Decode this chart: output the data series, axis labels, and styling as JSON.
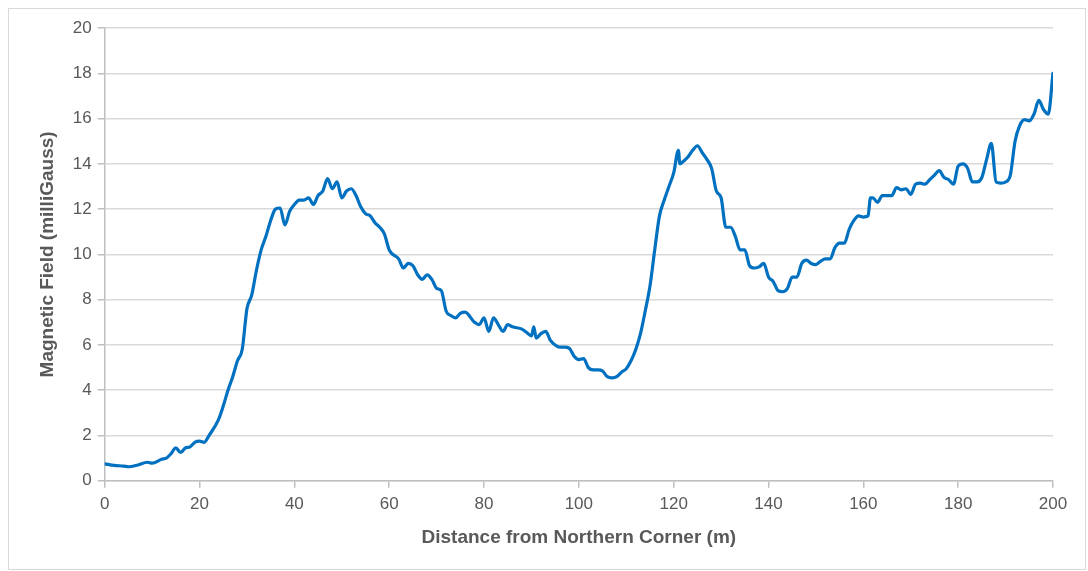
{
  "chart_data": {
    "type": "line",
    "xlabel": "Distance from Northern Corner (m)",
    "ylabel": "Magnetic Field (milliGauss)",
    "x": [
      0,
      2,
      4,
      5,
      7,
      9,
      10,
      12,
      13,
      14,
      15,
      16,
      17,
      18,
      19,
      20,
      21,
      22,
      24,
      25,
      26,
      27,
      28,
      29,
      30,
      31,
      32,
      33,
      34,
      35,
      36,
      37,
      38,
      39,
      40,
      41,
      42,
      43,
      44,
      45,
      46,
      47,
      48,
      49,
      50,
      51,
      52,
      53,
      54,
      55,
      56,
      57,
      58,
      59,
      60,
      62,
      63,
      64,
      65,
      66,
      67,
      68,
      69,
      70,
      71,
      72,
      73,
      74,
      75,
      76,
      78,
      79,
      80,
      81,
      82,
      83,
      84,
      85,
      86,
      88,
      89,
      90,
      90.5,
      91,
      92,
      93,
      94,
      95,
      96,
      97,
      98,
      99,
      100,
      101,
      102,
      103,
      104,
      105,
      106,
      107,
      108,
      109,
      110,
      111,
      112,
      113,
      114,
      115,
      116,
      117,
      118,
      119,
      120,
      121,
      121.3,
      122,
      123,
      124,
      125,
      126,
      127,
      128,
      129,
      130,
      131,
      132,
      133,
      134,
      135,
      136,
      137,
      138,
      139,
      140,
      141,
      142,
      143,
      144,
      145,
      146,
      147,
      148,
      149,
      150,
      151,
      152,
      153,
      154,
      155,
      156,
      157,
      158,
      159,
      160,
      161,
      161.5,
      162,
      163,
      164,
      165,
      166,
      167,
      168,
      169,
      170,
      171,
      172,
      173,
      174,
      175,
      176,
      177,
      178,
      179,
      180,
      181,
      182,
      183,
      184,
      185,
      186,
      187,
      188,
      189,
      190,
      191,
      192,
      193,
      194,
      195,
      196,
      197,
      198,
      199,
      200
    ],
    "series": [
      {
        "color": "#0070c0",
        "values": [
          0.75,
          0.68,
          0.65,
          0.62,
          0.7,
          0.82,
          0.78,
          0.95,
          1.0,
          1.2,
          1.45,
          1.25,
          1.45,
          1.5,
          1.7,
          1.75,
          1.7,
          2.0,
          2.7,
          3.3,
          4.0,
          4.6,
          5.3,
          5.8,
          7.6,
          8.2,
          9.3,
          10.2,
          10.8,
          11.5,
          12.0,
          12.05,
          11.3,
          11.9,
          12.2,
          12.4,
          12.4,
          12.5,
          12.2,
          12.6,
          12.8,
          13.35,
          12.9,
          13.2,
          12.5,
          12.8,
          12.9,
          12.6,
          12.1,
          11.8,
          11.7,
          11.4,
          11.2,
          10.9,
          10.2,
          9.8,
          9.4,
          9.6,
          9.5,
          9.1,
          8.9,
          9.1,
          8.9,
          8.5,
          8.4,
          7.5,
          7.3,
          7.2,
          7.4,
          7.45,
          7.0,
          6.9,
          7.2,
          6.6,
          7.2,
          6.9,
          6.6,
          6.9,
          6.8,
          6.7,
          6.55,
          6.4,
          6.8,
          6.3,
          6.5,
          6.6,
          6.2,
          6.0,
          5.9,
          5.9,
          5.85,
          5.5,
          5.35,
          5.4,
          5.0,
          4.9,
          4.9,
          4.85,
          4.6,
          4.55,
          4.6,
          4.8,
          4.95,
          5.3,
          5.8,
          6.5,
          7.5,
          8.6,
          10.2,
          11.7,
          12.4,
          13.0,
          13.6,
          14.6,
          14.0,
          14.1,
          14.3,
          14.6,
          14.8,
          14.5,
          14.2,
          13.8,
          12.8,
          12.5,
          11.2,
          11.2,
          10.8,
          10.2,
          10.2,
          9.5,
          9.4,
          9.45,
          9.6,
          9.0,
          8.8,
          8.4,
          8.35,
          8.5,
          9.0,
          9.0,
          9.6,
          9.75,
          9.6,
          9.55,
          9.7,
          9.8,
          9.8,
          10.3,
          10.5,
          10.5,
          11.1,
          11.5,
          11.7,
          11.65,
          11.7,
          12.5,
          12.5,
          12.3,
          12.6,
          12.6,
          12.6,
          12.95,
          12.85,
          12.9,
          12.65,
          13.1,
          13.15,
          13.1,
          13.3,
          13.5,
          13.7,
          13.4,
          13.3,
          13.1,
          13.9,
          14.0,
          13.8,
          13.2,
          13.2,
          13.4,
          14.2,
          14.9,
          13.2,
          13.15,
          13.2,
          13.5,
          15.0,
          15.7,
          15.95,
          15.9,
          16.2,
          16.8,
          16.4,
          16.2,
          18.0
        ]
      }
    ],
    "xlim": [
      0,
      200
    ],
    "xticks": [
      0,
      20,
      40,
      60,
      80,
      100,
      120,
      140,
      160,
      180,
      200
    ],
    "ylim": [
      0,
      20
    ],
    "yticks": [
      0,
      2,
      4,
      6,
      8,
      10,
      12,
      14,
      16,
      18,
      20
    ],
    "grid": "y",
    "marker": "none",
    "line_style": "solid",
    "legend": false
  }
}
